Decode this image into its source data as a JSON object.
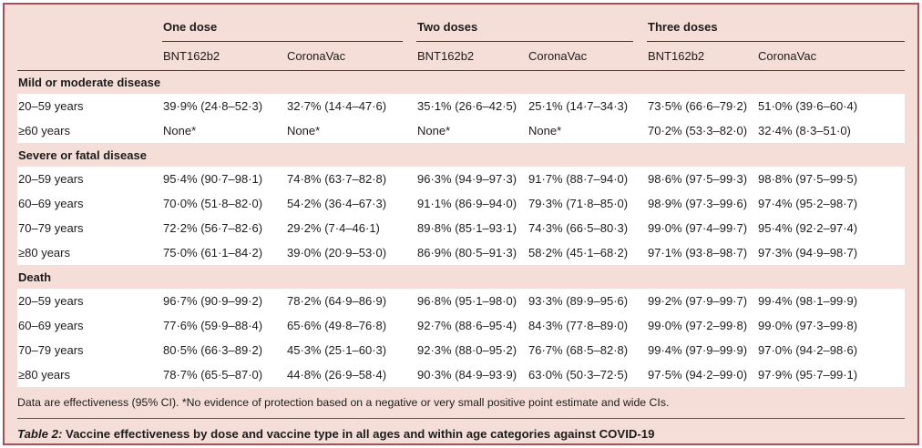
{
  "table": {
    "dose_groups": [
      {
        "label": "One dose"
      },
      {
        "label": "Two doses"
      },
      {
        "label": "Three doses"
      }
    ],
    "vaccine_headers": [
      "BNT162b2",
      "CoronaVac",
      "BNT162b2",
      "CoronaVac",
      "BNT162b2",
      "CoronaVac"
    ],
    "sections": [
      {
        "title": "Mild or moderate disease",
        "rows": [
          {
            "label": "20–59 years",
            "values": [
              "39·9% (24·8–52·3)",
              "32·7% (14·4–47·6)",
              "35·1% (26·6–42·5)",
              "25·1% (14·7–34·3)",
              "73·5% (66·6–79·2)",
              "51·0% (39·6–60·4)"
            ]
          },
          {
            "label": "≥60 years",
            "values": [
              "None*",
              "None*",
              "None*",
              "None*",
              "70·2% (53·3–82·0)",
              "32·4% (8·3–51·0)"
            ]
          }
        ]
      },
      {
        "title": "Severe or fatal disease",
        "rows": [
          {
            "label": "20–59 years",
            "values": [
              "95·4% (90·7–98·1)",
              "74·8% (63·7–82·8)",
              "96·3% (94·9–97·3)",
              "91·7% (88·7–94·0)",
              "98·6% (97·5–99·3)",
              "98·8% (97·5–99·5)"
            ]
          },
          {
            "label": "60–69 years",
            "values": [
              "70·0% (51·8–82·0)",
              "54·2% (36·4–67·3)",
              "91·1% (86·9–94·0)",
              "79·3% (71·8–85·0)",
              "98·9% (97·3–99·6)",
              "97·4% (95·2–98·7)"
            ]
          },
          {
            "label": "70–79 years",
            "values": [
              "72·2% (56·7–82·6)",
              "29·2% (7·4–46·1)",
              "89·8% (85·1–93·1)",
              "74·3% (66·5–80·3)",
              "99·0% (97·4–99·7)",
              "95·4% (92·2–97·4)"
            ]
          },
          {
            "label": "≥80 years",
            "values": [
              "75·0% (61·1–84·2)",
              "39·0% (20·9–53·0)",
              "86·9% (80·5–91·3)",
              "58·2% (45·1–68·2)",
              "97·1% (93·8–98·7)",
              "97·3% (94·9–98·7)"
            ]
          }
        ]
      },
      {
        "title": "Death",
        "rows": [
          {
            "label": "20–59 years",
            "values": [
              "96·7% (90·9–99·2)",
              "78·2% (64·9–86·9)",
              "96·8% (95·1–98·0)",
              "93·3% (89·9–95·6)",
              "99·2% (97·9–99·7)",
              "99·4% (98·1–99·9)"
            ]
          },
          {
            "label": "60–69 years",
            "values": [
              "77·6% (59·9–88·4)",
              "65·6% (49·8–76·8)",
              "92·7% (88·6–95·4)",
              "84·3% (77·8–89·0)",
              "99·0% (97·2–99·8)",
              "99·0% (97·3–99·8)"
            ]
          },
          {
            "label": "70–79 years",
            "values": [
              "80·5% (66·3–89·2)",
              "45·3% (25·1–60·3)",
              "92·3% (88·0–95·2)",
              "76·7% (68·5–82·8)",
              "99·4% (97·9–99·9)",
              "97·0% (94·2–98·6)"
            ]
          },
          {
            "label": "≥80 years",
            "values": [
              "78·7% (65·5–87·0)",
              "44·8% (26·9–58·4)",
              "90·3% (84·9–93·9)",
              "63·0% (50·3–72·5)",
              "97·5% (94·2–99·0)",
              "97·9% (95·7–99·1)"
            ]
          }
        ]
      }
    ],
    "footnote": "Data are effectiveness (95% CI). *No evidence of protection based on a negative or very small positive point estimate and wide CIs.",
    "caption_prefix": "Table 2:",
    "caption_text": " Vaccine effectiveness by dose and vaccine type in all ages and within age categories against COVID-19"
  },
  "colors": {
    "background_pink": "#f6ded8",
    "border_maroon": "#ad4d58",
    "row_white": "#ffffff",
    "rule_dark": "#3a3a3a",
    "text": "#1c1c1c"
  }
}
